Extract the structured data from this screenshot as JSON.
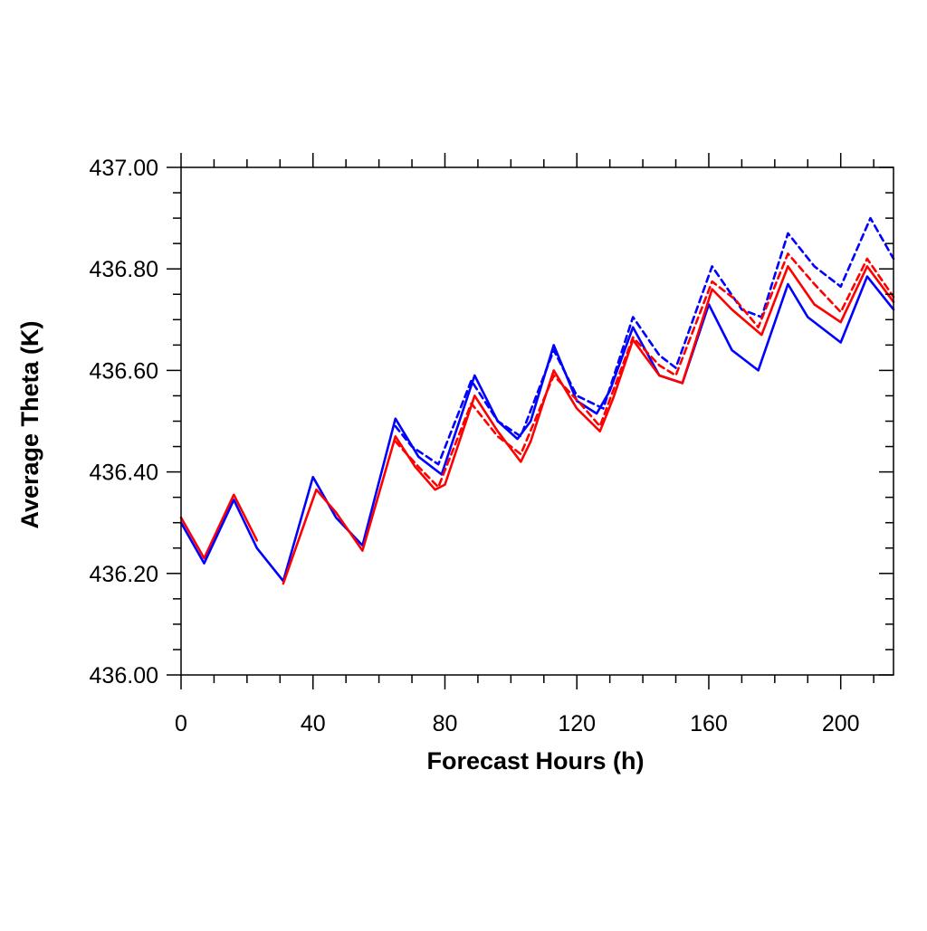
{
  "chart_data": {
    "type": "line",
    "xlabel": "Forecast Hours (h)",
    "ylabel": "Average Theta (K)",
    "xlim": [
      0,
      216
    ],
    "ylim": [
      436.0,
      437.0
    ],
    "x_ticks": [
      0,
      40,
      80,
      120,
      160,
      200
    ],
    "x_tick_labels": [
      "0",
      "40",
      "80",
      "120",
      "160",
      "200"
    ],
    "y_ticks": [
      436.0,
      436.2,
      436.4,
      436.6,
      436.8,
      437.0
    ],
    "y_tick_labels": [
      "436.00",
      "436.20",
      "436.40",
      "436.60",
      "436.80",
      "437.00"
    ],
    "grid": false,
    "legend": "none",
    "series": [
      {
        "color": "#ff0000",
        "dash": "solid",
        "x": [
          0,
          7,
          16,
          23
        ],
        "y": [
          436.31,
          436.23,
          436.355,
          436.265
        ]
      },
      {
        "color": "#0000ff",
        "dash": "solid",
        "x": [
          0,
          7,
          16,
          23,
          31,
          40,
          47,
          55,
          65,
          72,
          79,
          89,
          96,
          102,
          106,
          113,
          120,
          126,
          130,
          137,
          145,
          152,
          160,
          167,
          175,
          184,
          190,
          200,
          208,
          216
        ],
        "y": [
          436.3,
          436.22,
          436.345,
          436.25,
          436.185,
          436.39,
          436.31,
          436.255,
          436.505,
          436.43,
          436.395,
          436.59,
          436.5,
          436.465,
          436.5,
          436.65,
          436.54,
          436.515,
          436.56,
          436.685,
          436.59,
          436.575,
          436.73,
          436.64,
          436.6,
          436.77,
          436.705,
          436.655,
          436.785,
          436.72
        ]
      },
      {
        "color": "#ff0000",
        "dash": "solid",
        "x": [
          31,
          41,
          47,
          55,
          65,
          71,
          77,
          80,
          89,
          96,
          103,
          106,
          113,
          120,
          127,
          131,
          137,
          145,
          152,
          161,
          167,
          176,
          184,
          192,
          200,
          208,
          216
        ],
        "y": [
          436.18,
          436.365,
          436.32,
          436.245,
          436.47,
          436.41,
          436.365,
          436.375,
          436.55,
          436.48,
          436.42,
          436.46,
          436.6,
          436.525,
          436.48,
          436.545,
          436.66,
          436.59,
          436.575,
          436.76,
          436.72,
          436.67,
          436.805,
          436.73,
          436.695,
          436.805,
          436.735
        ]
      },
      {
        "color": "#0000ff",
        "dash": "dashed",
        "x": [
          65,
          70,
          78,
          88,
          96,
          103,
          113,
          120,
          128,
          137,
          145,
          150,
          161,
          170,
          176,
          184,
          192,
          200,
          209,
          216
        ],
        "y": [
          436.49,
          436.45,
          436.415,
          436.58,
          436.5,
          436.47,
          436.64,
          436.55,
          436.525,
          436.705,
          436.63,
          436.605,
          436.805,
          436.72,
          436.705,
          436.87,
          436.805,
          436.765,
          436.9,
          436.82
        ]
      },
      {
        "color": "#ff0000",
        "dash": "dashed",
        "x": [
          65,
          72,
          78,
          88,
          96,
          103,
          113,
          121,
          127,
          137,
          145,
          150,
          161,
          168,
          175,
          184,
          192,
          200,
          208,
          216
        ],
        "y": [
          436.46,
          436.41,
          436.37,
          436.535,
          436.47,
          436.435,
          436.59,
          436.535,
          436.49,
          436.665,
          436.61,
          436.59,
          436.775,
          436.74,
          436.685,
          436.83,
          436.77,
          436.715,
          436.82,
          436.745
        ]
      }
    ]
  }
}
